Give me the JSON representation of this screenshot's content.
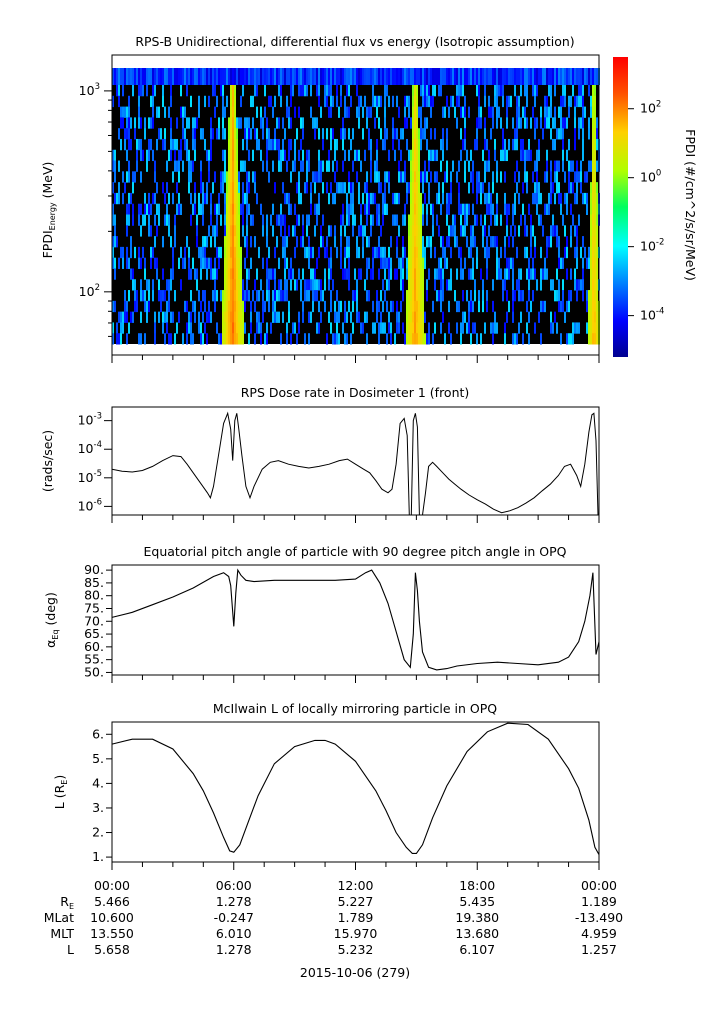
{
  "chart_data": [
    {
      "type": "heatmap",
      "title": "RPS-B  Unidirectional, differential flux vs energy (Isotropic assumption)",
      "ylabel_main": "FPDI",
      "ylabel_sub": "Energy",
      "ylabel_unit": "(MeV)",
      "y_scale": "log",
      "ylim": [
        55,
        1400
      ],
      "y_ticks": [
        {
          "value": 100,
          "base": "10",
          "exp": "2"
        },
        {
          "value": 1000,
          "base": "10",
          "exp": "3"
        }
      ],
      "colorbar": {
        "label": "FPDI (#/cm^2/s/sr/MeV)",
        "scale": "log",
        "range_exp": [
          -5.2,
          3.5
        ],
        "ticks": [
          {
            "exp": 2,
            "label_base": "10",
            "label_exp": "2"
          },
          {
            "exp": 0,
            "label_base": "10",
            "label_exp": "0"
          },
          {
            "exp": -2,
            "label_base": "10",
            "label_exp": "-2"
          },
          {
            "exp": -4,
            "label_base": "10",
            "label_exp": "-4"
          }
        ]
      },
      "belt_passes_hours": [
        {
          "center": 5.9,
          "width": 0.4,
          "intensity": 2.0
        },
        {
          "center": 14.9,
          "width": 0.35,
          "intensity": 1.6
        },
        {
          "center": 23.7,
          "width": 0.2,
          "intensity": 1.4
        }
      ],
      "energy_channels": 24
    },
    {
      "type": "line",
      "title": "RPS  Dose rate in Dosimeter 1 (front)",
      "ylabel": "(rads/sec)",
      "y_scale": "log",
      "ylim": [
        5e-07,
        0.003
      ],
      "y_ticks": [
        {
          "value": 0.001,
          "base": "10",
          "exp": "-3"
        },
        {
          "value": 0.0001,
          "base": "10",
          "exp": "-4"
        },
        {
          "value": 1e-05,
          "base": "10",
          "exp": "-5"
        },
        {
          "value": 1e-06,
          "base": "10",
          "exp": "-6"
        }
      ],
      "x_hours": [
        0,
        0.5,
        1,
        1.5,
        2,
        2.5,
        3,
        3.4,
        3.7,
        4,
        4.4,
        4.7,
        4.85,
        5,
        5.3,
        5.5,
        5.7,
        5.85,
        5.95,
        6.05,
        6.15,
        6.25,
        6.4,
        6.6,
        6.8,
        7,
        7.4,
        7.8,
        8.2,
        8.7,
        9.2,
        9.7,
        10.2,
        10.7,
        11.2,
        11.6,
        12,
        12.4,
        12.7,
        13,
        13.3,
        13.6,
        13.8,
        14.0,
        14.2,
        14.4,
        14.55,
        14.65,
        14.75,
        14.85,
        14.95,
        15.05,
        15.15,
        15.3,
        15.45,
        15.6,
        15.8,
        16.0,
        16.3,
        16.6,
        16.9,
        17.2,
        17.6,
        18,
        18.4,
        18.8,
        19.2,
        19.6,
        20,
        20.4,
        20.8,
        21.2,
        21.6,
        22,
        22.3,
        22.6,
        22.9,
        23.1,
        23.3,
        23.5,
        23.65,
        23.75,
        23.85,
        23.95,
        24
      ],
      "values": [
        2e-05,
        1.7e-05,
        1.6e-05,
        1.8e-05,
        2.5e-05,
        4e-05,
        6e-05,
        5.5e-05,
        3e-05,
        1.5e-05,
        6e-06,
        3e-06,
        2e-06,
        5e-06,
        0.0001,
        0.0008,
        0.0018,
        0.0005,
        4e-05,
        0.001,
        0.0018,
        0.0005,
        6e-05,
        5e-06,
        2e-06,
        5e-06,
        2e-05,
        3.5e-05,
        4e-05,
        3e-05,
        2.5e-05,
        2.2e-05,
        2.5e-05,
        3e-05,
        4e-05,
        4.5e-05,
        3e-05,
        2e-05,
        1.5e-05,
        8e-06,
        4e-06,
        3e-06,
        4e-06,
        3e-05,
        0.0008,
        0.0012,
        0.0003,
        5e-07,
        5e-07,
        0.001,
        0.0018,
        0.0006,
        5e-07,
        5e-07,
        3e-06,
        2.5e-05,
        3.5e-05,
        2.5e-05,
        1.5e-05,
        9e-06,
        6e-06,
        4e-06,
        2.5e-06,
        1.7e-06,
        1.2e-06,
        8e-07,
        6e-07,
        7e-07,
        9e-07,
        1.3e-06,
        2e-06,
        3.5e-06,
        6e-06,
        1.2e-05,
        2.5e-05,
        3e-05,
        1.2e-05,
        5e-06,
        3e-05,
        0.0004,
        0.0016,
        0.0018,
        0.0002,
        5e-07,
        5e-07
      ]
    },
    {
      "type": "line",
      "title": "Equatorial pitch angle of particle with 90 degree pitch angle in OPQ",
      "ylabel_main": "α",
      "ylabel_sub": "Eq",
      "ylabel_unit": "(deg)",
      "ylim": [
        49,
        92
      ],
      "y_ticks": [
        "90.",
        "85.",
        "80.",
        "75.",
        "70.",
        "65.",
        "60.",
        "55.",
        "50."
      ],
      "y_tick_values": [
        90,
        85,
        80,
        75,
        70,
        65,
        60,
        55,
        50
      ],
      "x_hours": [
        0,
        1,
        2,
        3,
        4,
        5,
        5.5,
        5.75,
        5.85,
        6.0,
        6.1,
        6.2,
        6.35,
        6.6,
        7,
        8,
        9,
        10,
        11,
        12,
        12.5,
        12.8,
        13.2,
        13.6,
        14.0,
        14.4,
        14.7,
        14.85,
        14.95,
        15.05,
        15.15,
        15.3,
        15.6,
        16,
        16.5,
        17,
        18,
        19,
        20,
        21,
        22,
        22.5,
        23,
        23.3,
        23.55,
        23.7,
        23.85,
        24
      ],
      "values": [
        71.5,
        73.5,
        76.5,
        79.5,
        83,
        87.5,
        89,
        87.5,
        84,
        68,
        81,
        90,
        88,
        86,
        85.5,
        86,
        86,
        86,
        86,
        86.5,
        89,
        90,
        85,
        77,
        66,
        55,
        52,
        65,
        89,
        82,
        70,
        58,
        52,
        51,
        51.5,
        52.5,
        53.5,
        54,
        53.5,
        53,
        54,
        56,
        62,
        70,
        80,
        89,
        57,
        62
      ]
    },
    {
      "type": "line",
      "title": "McIlwain L of locally mirroring particle in OPQ",
      "ylabel": "L (R",
      "ylabel_sub": "E",
      "ylabel_close": ")",
      "ylim": [
        0.8,
        6.5
      ],
      "y_ticks": [
        "6.",
        "5.",
        "4.",
        "3.",
        "2.",
        "1."
      ],
      "y_tick_values": [
        6,
        5,
        4,
        3,
        2,
        1
      ],
      "x_hours": [
        0,
        1,
        2,
        3,
        4,
        4.5,
        5,
        5.5,
        5.8,
        6,
        6.3,
        6.7,
        7.2,
        8,
        9,
        10,
        10.5,
        11,
        12,
        13,
        13.5,
        14,
        14.5,
        14.8,
        15,
        15.3,
        15.8,
        16.5,
        17.5,
        18.5,
        19.5,
        20.5,
        21.5,
        22.5,
        23,
        23.5,
        23.8,
        24
      ],
      "values": [
        5.6,
        5.8,
        5.8,
        5.4,
        4.4,
        3.7,
        2.8,
        1.8,
        1.25,
        1.2,
        1.5,
        2.4,
        3.5,
        4.8,
        5.5,
        5.75,
        5.75,
        5.6,
        4.9,
        3.7,
        2.9,
        2.0,
        1.4,
        1.15,
        1.15,
        1.5,
        2.6,
        3.9,
        5.3,
        6.1,
        6.45,
        6.4,
        5.8,
        4.6,
        3.8,
        2.5,
        1.4,
        1.1
      ]
    }
  ],
  "x_axis": {
    "tick_labels": [
      "00:00",
      "06:00",
      "12:00",
      "18:00",
      "00:00"
    ],
    "minor_ticks_hours": 1.5,
    "range_hours": [
      0,
      24
    ]
  },
  "ephemeris": {
    "rows": [
      {
        "label": "R",
        "label_sub": "E",
        "values": [
          "5.466",
          "1.278",
          "5.227",
          "5.435",
          "1.189"
        ]
      },
      {
        "label": "MLat",
        "label_sub": "",
        "values": [
          "10.600",
          "-0.247",
          "1.789",
          "19.380",
          "-13.490"
        ]
      },
      {
        "label": "MLT",
        "label_sub": "",
        "values": [
          "13.550",
          "6.010",
          "15.970",
          "13.680",
          "4.959"
        ]
      },
      {
        "label": "L",
        "label_sub": "",
        "values": [
          "5.658",
          "1.278",
          "5.232",
          "6.107",
          "1.257"
        ]
      }
    ],
    "date_label": "2015-10-06 (279)"
  }
}
